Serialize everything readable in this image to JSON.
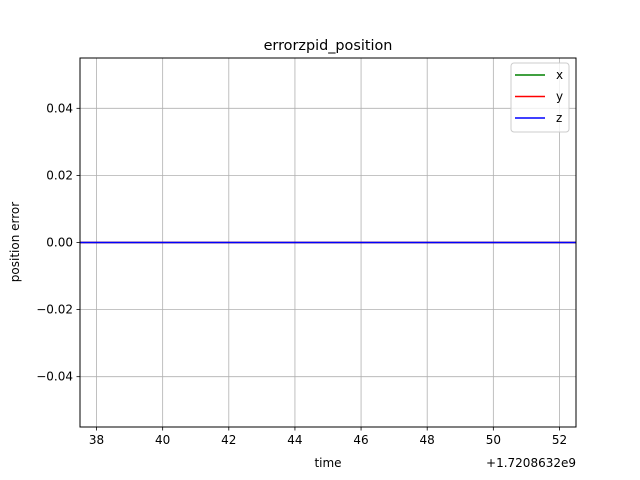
{
  "chart_data": {
    "type": "line",
    "title": "errorzpid_position",
    "xlabel": "time",
    "ylabel": "position error",
    "x_offset_label": "+1.7208632e9",
    "xlim": [
      37.5,
      52.5
    ],
    "ylim": [
      -0.055,
      0.055
    ],
    "x_ticks": [
      38,
      40,
      42,
      44,
      46,
      48,
      50,
      52
    ],
    "x_tick_labels": [
      "38",
      "40",
      "42",
      "44",
      "46",
      "48",
      "50",
      "52"
    ],
    "y_ticks": [
      -0.04,
      -0.02,
      0.0,
      0.02,
      0.04
    ],
    "y_tick_labels": [
      "−0.04",
      "−0.02",
      "0.00",
      "0.02",
      "0.04"
    ],
    "grid": true,
    "legend_position": "top-right",
    "series": [
      {
        "name": "x",
        "color": "#008000",
        "x": [
          37.5,
          52.5
        ],
        "y": [
          0.0,
          0.0
        ]
      },
      {
        "name": "y",
        "color": "#ff0000",
        "x": [
          37.5,
          52.5
        ],
        "y": [
          0.0,
          0.0
        ]
      },
      {
        "name": "z",
        "color": "#0000ff",
        "x": [
          37.5,
          52.5
        ],
        "y": [
          0.0,
          0.0
        ]
      }
    ]
  }
}
